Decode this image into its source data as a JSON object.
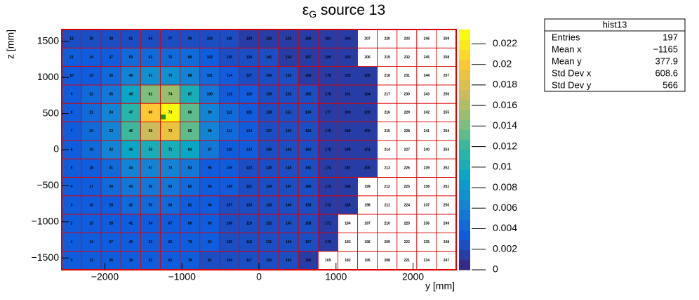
{
  "chart_data": {
    "type": "heatmap",
    "title": "ε",
    "title_sub": "G",
    "title_tail": " source 13",
    "x_label": "y [mm]",
    "y_label": "z [mm]",
    "xlim": [
      -2560,
      2560
    ],
    "ylim": [
      -1664,
      1664
    ],
    "xticks": [
      {
        "value": -2000,
        "label": "−2000"
      },
      {
        "value": -1000,
        "label": "−1000"
      },
      0,
      1000,
      2000
    ],
    "yticks": [
      {
        "value": -1500,
        "label": "−1500"
      },
      {
        "value": -1000,
        "label": "−1000"
      },
      {
        "value": -500,
        "label": "−500"
      },
      0,
      500,
      1000,
      1500
    ],
    "zlim": [
      0,
      0.0234
    ],
    "zticks": [
      0,
      0.002,
      0.004,
      0.006,
      0.008,
      0.01,
      0.012,
      0.014,
      0.016,
      0.018,
      0.02,
      0.022
    ],
    "colormap": "bird",
    "z": [
      [
        0.003,
        0.003,
        0.003,
        0.003,
        0.003,
        0.003,
        0.003,
        0.0025,
        0.0025,
        0.0025,
        0.002,
        0.002,
        0.0015,
        null,
        null,
        null,
        null,
        null,
        null,
        null
      ],
      [
        0.003,
        0.003,
        0.003,
        0.0035,
        0.0035,
        0.0035,
        0.003,
        0.003,
        0.0025,
        0.0025,
        0.002,
        0.002,
        0.002,
        0.0015,
        null,
        null,
        null,
        null,
        null,
        null
      ],
      [
        0.003,
        0.003,
        0.003,
        0.0035,
        0.0035,
        0.0035,
        0.003,
        0.003,
        0.0025,
        0.0025,
        0.002,
        0.002,
        0.002,
        0.0015,
        null,
        null,
        null,
        null,
        null,
        null
      ],
      [
        0.003,
        0.003,
        0.0035,
        0.004,
        0.004,
        0.004,
        0.0035,
        0.003,
        0.0025,
        0.0025,
        0.002,
        0.002,
        0.002,
        0.0015,
        0.0015,
        null,
        null,
        null,
        null,
        null
      ],
      [
        0.003,
        0.0035,
        0.004,
        0.005,
        0.005,
        0.005,
        0.004,
        0.003,
        0.003,
        0.0025,
        0.002,
        0.002,
        0.002,
        0.0015,
        0.0015,
        null,
        null,
        null,
        null,
        null
      ],
      [
        0.003,
        0.0035,
        0.0045,
        0.006,
        0.006,
        0.006,
        0.005,
        0.0035,
        0.003,
        0.0025,
        0.002,
        0.002,
        0.002,
        0.0015,
        0.0015,
        0.0015,
        null,
        null,
        null,
        null
      ],
      [
        0.0035,
        0.004,
        0.006,
        0.009,
        0.0105,
        0.0105,
        0.0095,
        0.005,
        0.0035,
        0.003,
        0.0025,
        0.002,
        0.002,
        0.0015,
        0.0015,
        0.0015,
        null,
        null,
        null,
        null
      ],
      [
        0.0035,
        0.0045,
        0.0065,
        0.012,
        0.017,
        0.019,
        0.013,
        0.006,
        0.004,
        0.003,
        0.0025,
        0.002,
        0.002,
        0.0015,
        0.0015,
        0.0015,
        null,
        null,
        null,
        null
      ],
      [
        0.0035,
        0.0045,
        0.0065,
        0.011,
        0.0195,
        0.0232,
        0.0135,
        0.006,
        0.004,
        0.003,
        0.0025,
        0.002,
        0.002,
        0.0015,
        0.0015,
        0.0015,
        null,
        null,
        null,
        null
      ],
      [
        0.0035,
        0.004,
        0.0055,
        0.009,
        0.0145,
        0.015,
        0.01,
        0.005,
        0.0035,
        0.003,
        0.0025,
        0.002,
        0.002,
        0.0015,
        0.0015,
        0.0015,
        null,
        null,
        null,
        null
      ],
      [
        0.003,
        0.0035,
        0.0045,
        0.006,
        0.007,
        0.007,
        0.006,
        0.004,
        0.003,
        0.0025,
        0.002,
        0.002,
        0.0015,
        0.0015,
        0.0015,
        0.0015,
        null,
        null,
        null,
        null
      ],
      [
        0.003,
        0.003,
        0.0035,
        0.004,
        0.0045,
        0.0045,
        0.004,
        0.003,
        0.0025,
        0.002,
        0.002,
        0.0015,
        0.0015,
        0.0015,
        0.0015,
        null,
        null,
        null,
        null,
        null
      ],
      [
        0.002,
        0.002,
        0.002,
        0.0025,
        0.0025,
        0.0025,
        0.0025,
        0.002,
        0.002,
        0.0015,
        0.0015,
        0.0015,
        0.0015,
        0.0015,
        0.0015,
        null,
        null,
        null,
        null,
        null
      ]
    ],
    "cell_labels": [
      [
        0,
        13,
        26,
        39,
        52,
        65,
        78,
        91,
        104,
        117,
        130,
        143,
        156,
        169,
        182,
        195,
        208,
        221,
        234,
        247
      ],
      [
        1,
        14,
        27,
        40,
        53,
        66,
        79,
        92,
        105,
        118,
        131,
        144,
        157,
        170,
        183,
        196,
        209,
        222,
        235,
        248
      ],
      [
        2,
        15,
        28,
        41,
        54,
        67,
        80,
        93,
        106,
        119,
        132,
        145,
        158,
        171,
        184,
        197,
        210,
        223,
        236,
        249
      ],
      [
        3,
        16,
        29,
        42,
        55,
        68,
        81,
        94,
        107,
        120,
        133,
        146,
        159,
        172,
        185,
        198,
        211,
        224,
        237,
        250
      ],
      [
        4,
        17,
        30,
        43,
        56,
        69,
        82,
        95,
        108,
        121,
        134,
        147,
        160,
        173,
        186,
        199,
        212,
        225,
        238,
        251
      ],
      [
        5,
        18,
        31,
        44,
        57,
        70,
        83,
        96,
        109,
        122,
        135,
        148,
        161,
        174,
        187,
        200,
        213,
        226,
        239,
        252
      ],
      [
        6,
        19,
        32,
        45,
        58,
        71,
        84,
        97,
        110,
        123,
        136,
        149,
        162,
        175,
        188,
        201,
        214,
        227,
        240,
        253
      ],
      [
        7,
        20,
        33,
        46,
        59,
        72,
        85,
        98,
        111,
        124,
        137,
        150,
        163,
        176,
        189,
        202,
        215,
        228,
        241,
        254
      ],
      [
        8,
        21,
        34,
        47,
        60,
        73,
        86,
        99,
        112,
        125,
        138,
        151,
        164,
        177,
        190,
        203,
        216,
        229,
        242,
        255
      ],
      [
        9,
        22,
        35,
        48,
        61,
        74,
        87,
        100,
        113,
        126,
        139,
        152,
        165,
        178,
        191,
        204,
        217,
        230,
        243,
        256
      ],
      [
        10,
        23,
        36,
        49,
        62,
        75,
        88,
        101,
        114,
        127,
        140,
        153,
        166,
        179,
        192,
        205,
        218,
        231,
        244,
        257
      ],
      [
        11,
        24,
        37,
        50,
        63,
        76,
        89,
        102,
        115,
        128,
        141,
        154,
        167,
        180,
        193,
        206,
        219,
        232,
        245,
        258
      ],
      [
        12,
        25,
        38,
        51,
        64,
        77,
        90,
        103,
        116,
        129,
        142,
        155,
        168,
        181,
        194,
        207,
        220,
        233,
        246,
        259
      ]
    ],
    "stats": {
      "title": "hist13",
      "rows": [
        [
          "Entries",
          "197"
        ],
        [
          "Mean x",
          "−1165"
        ],
        [
          "Mean y",
          "377.9"
        ],
        [
          "Std Dev x",
          "608.6"
        ],
        [
          "Std Dev y",
          "566"
        ]
      ]
    }
  }
}
